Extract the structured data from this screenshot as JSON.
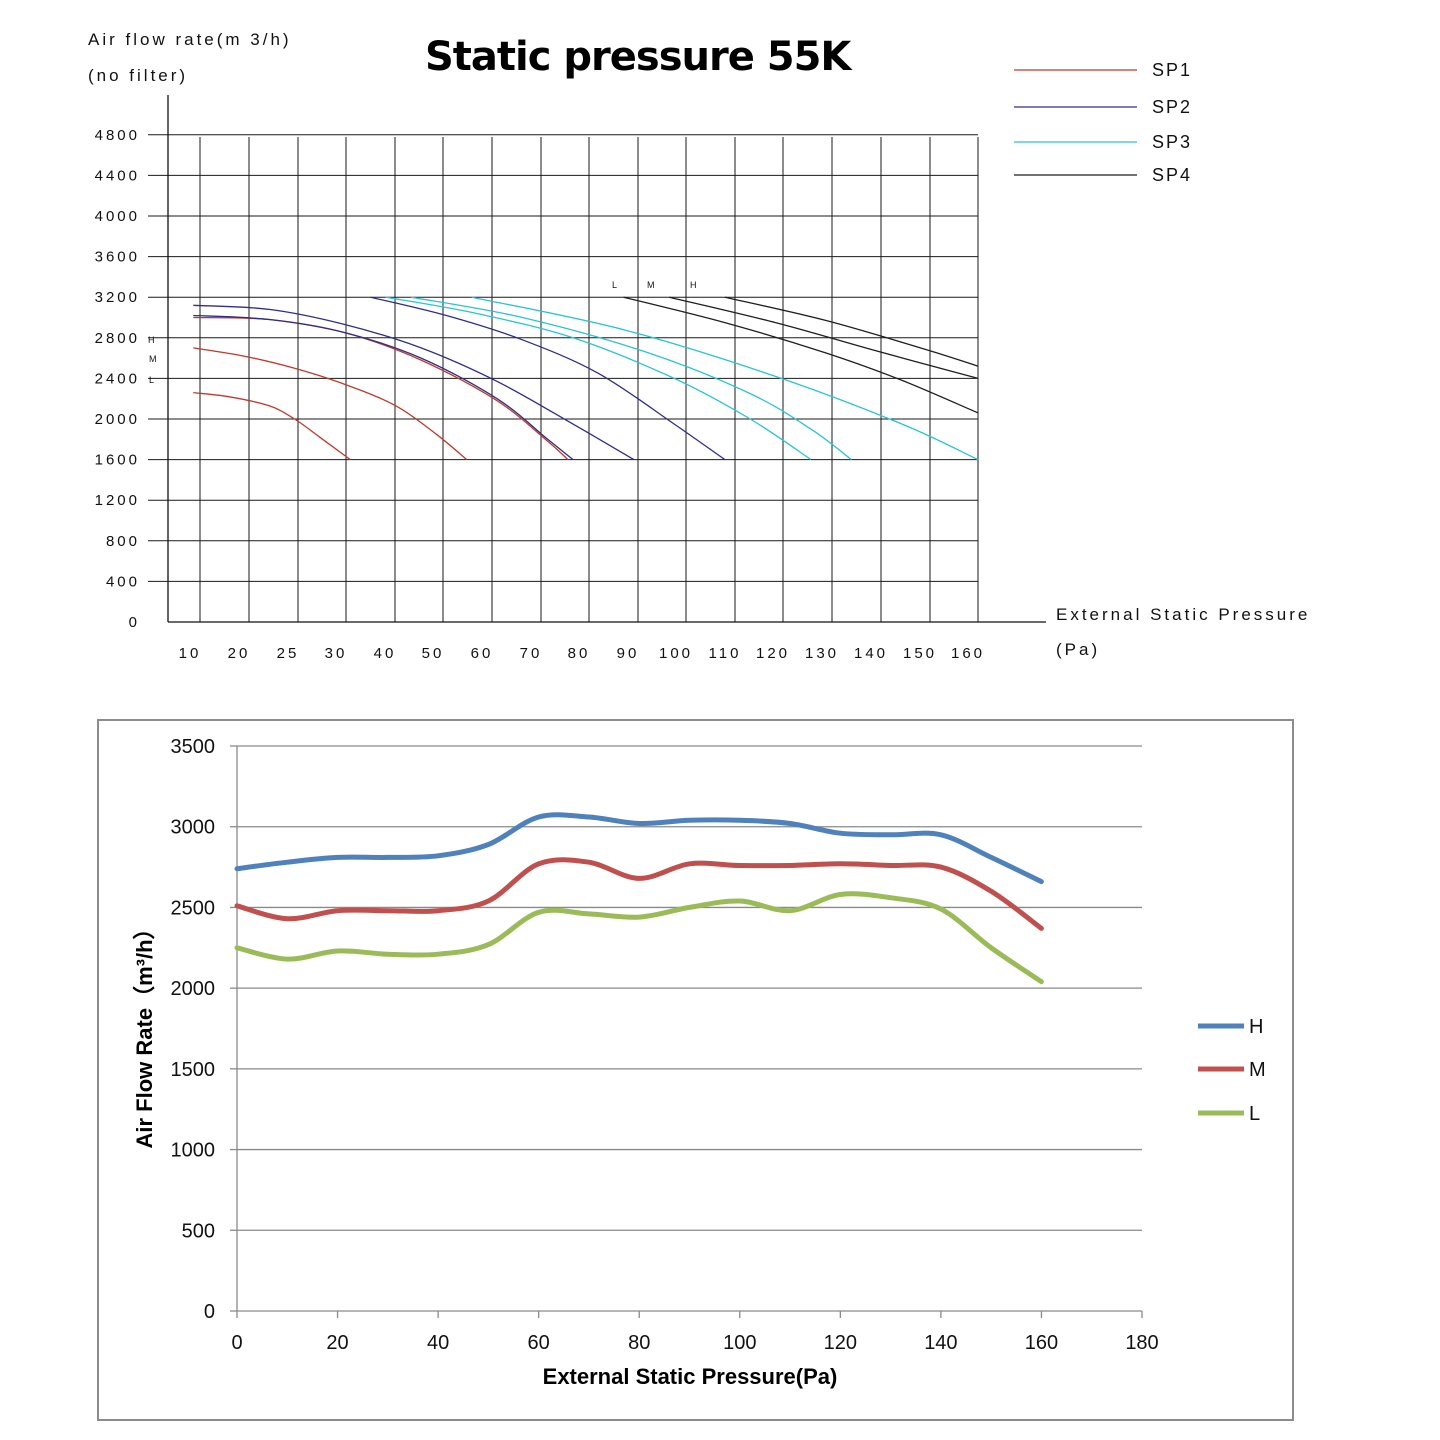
{
  "chart_data": [
    {
      "type": "line",
      "title": "Static pressure 55K",
      "ylabel": "Air flow rate(m 3/h)",
      "ylabel_sub": "(no filter)",
      "xlabel": "External Static Pressure",
      "xlabel_sub": "(Pa)",
      "y_ticks": [
        0,
        400,
        800,
        1200,
        1600,
        2000,
        2400,
        2800,
        3200,
        3600,
        4000,
        4400,
        4800
      ],
      "x_tick_labels": [
        "10",
        "20",
        "25",
        "30",
        "40",
        "50",
        "60",
        "70",
        "80",
        "90",
        "100",
        "110",
        "120",
        "130",
        "140",
        "150",
        "160"
      ],
      "speed_markers_axis": [
        "H",
        "M",
        "L"
      ],
      "speed_markers_top": [
        "L",
        "M",
        "H"
      ],
      "grid": true,
      "legend_position": "top-right",
      "series": [
        {
          "name": "SP1",
          "color": "#c0392b",
          "curves": [
            {
              "x": [
                5,
                12,
                20,
                25,
                30,
                36
              ],
              "y": [
                2260,
                2220,
                2130,
                2000,
                1820,
                1600
              ]
            },
            {
              "x": [
                5,
                15,
                25,
                35,
                45,
                53,
                59
              ],
              "y": [
                2700,
                2620,
                2500,
                2340,
                2130,
                1850,
                1600
              ]
            },
            {
              "x": [
                5,
                20,
                35,
                50,
                65,
                75,
                79
              ],
              "y": [
                3000,
                2980,
                2850,
                2580,
                2180,
                1780,
                1600
              ]
            }
          ]
        },
        {
          "name": "SP2",
          "color": "#2e2e8a",
          "curves": [
            {
              "x": [
                5,
                20,
                35,
                50,
                65,
                75,
                80
              ],
              "y": [
                3020,
                2980,
                2850,
                2600,
                2200,
                1800,
                1600
              ]
            },
            {
              "x": [
                5,
                20,
                35,
                50,
                65,
                80,
                92
              ],
              "y": [
                3120,
                3080,
                2930,
                2700,
                2370,
                1950,
                1600
              ]
            },
            {
              "x": [
                40,
                55,
                70,
                85,
                100,
                110
              ],
              "y": [
                3200,
                3020,
                2780,
                2450,
                1950,
                1600
              ]
            }
          ]
        },
        {
          "name": "SP3",
          "color": "#29c4d4",
          "curves": [
            {
              "x": [
                43,
                60,
                80,
                100,
                115,
                127
              ],
              "y": [
                3200,
                3050,
                2800,
                2400,
                2000,
                1600
              ]
            },
            {
              "x": [
                48,
                70,
                95,
                115,
                127,
                135
              ],
              "y": [
                3200,
                3000,
                2650,
                2250,
                1900,
                1600
              ]
            },
            {
              "x": [
                60,
                90,
                120,
                145,
                160
              ],
              "y": [
                3200,
                2880,
                2420,
                1950,
                1600
              ]
            }
          ]
        },
        {
          "name": "SP4",
          "color": "#1f1f1f",
          "curves": [
            {
              "x": [
                90,
                110,
                130,
                145,
                160
              ],
              "y": [
                3200,
                2950,
                2650,
                2380,
                2060
              ]
            },
            {
              "x": [
                99,
                120,
                140,
                160
              ],
              "y": [
                3200,
                2950,
                2670,
                2400
              ]
            },
            {
              "x": [
                110,
                130,
                150,
                160
              ],
              "y": [
                3200,
                2970,
                2680,
                2520
              ]
            }
          ]
        }
      ]
    },
    {
      "type": "line",
      "xlabel": "External Static Pressure(Pa)",
      "ylabel": "Air Flow Rate（m³/h）",
      "xlim": [
        0,
        180
      ],
      "ylim": [
        0,
        3500
      ],
      "x_ticks": [
        0,
        20,
        40,
        60,
        80,
        100,
        120,
        140,
        160,
        180
      ],
      "y_ticks": [
        0,
        500,
        1000,
        1500,
        2000,
        2500,
        3000,
        3500
      ],
      "grid": true,
      "legend_position": "right",
      "x": [
        0,
        10,
        20,
        30,
        40,
        50,
        60,
        70,
        80,
        90,
        100,
        110,
        120,
        130,
        140,
        150,
        160
      ],
      "series": [
        {
          "name": "H",
          "color": "#4f81bd",
          "values": [
            2740,
            2780,
            2810,
            2810,
            2820,
            2890,
            3060,
            3060,
            3020,
            3040,
            3040,
            3020,
            2960,
            2950,
            2950,
            2810,
            2660
          ]
        },
        {
          "name": "M",
          "color": "#c0504d",
          "values": [
            2510,
            2430,
            2480,
            2480,
            2480,
            2540,
            2770,
            2780,
            2680,
            2770,
            2760,
            2760,
            2770,
            2760,
            2750,
            2600,
            2370
          ]
        },
        {
          "name": "L",
          "color": "#9bbb59",
          "values": [
            2250,
            2180,
            2230,
            2210,
            2210,
            2270,
            2470,
            2460,
            2440,
            2500,
            2540,
            2480,
            2580,
            2560,
            2490,
            2250,
            2040
          ]
        }
      ]
    }
  ]
}
